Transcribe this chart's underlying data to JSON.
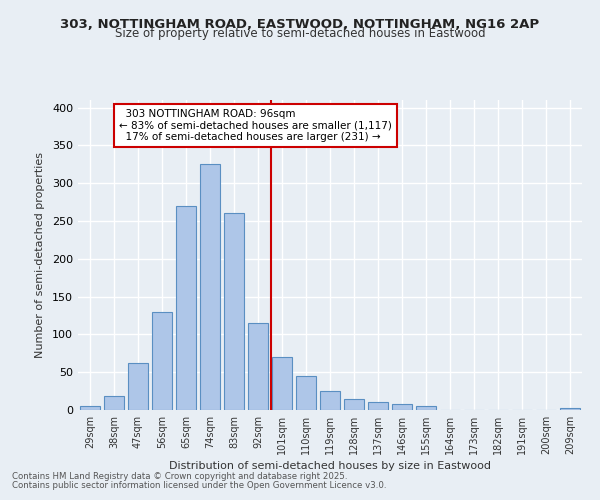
{
  "title1": "303, NOTTINGHAM ROAD, EASTWOOD, NOTTINGHAM, NG16 2AP",
  "title2": "Size of property relative to semi-detached houses in Eastwood",
  "xlabel": "Distribution of semi-detached houses by size in Eastwood",
  "ylabel": "Number of semi-detached properties",
  "categories": [
    "29sqm",
    "38sqm",
    "47sqm",
    "56sqm",
    "65sqm",
    "74sqm",
    "83sqm",
    "92sqm",
    "101sqm",
    "110sqm",
    "119sqm",
    "128sqm",
    "137sqm",
    "146sqm",
    "155sqm",
    "164sqm",
    "173sqm",
    "182sqm",
    "191sqm",
    "200sqm",
    "209sqm"
  ],
  "values": [
    5,
    18,
    62,
    130,
    270,
    325,
    260,
    115,
    70,
    45,
    25,
    15,
    10,
    8,
    5,
    0,
    0,
    0,
    0,
    0,
    2
  ],
  "bar_color": "#aec6e8",
  "bar_edge_color": "#5a8fc2",
  "property_label": "303 NOTTINGHAM ROAD: 96sqm",
  "pct_smaller": 83,
  "n_smaller": 1117,
  "pct_larger": 17,
  "n_larger": 231,
  "vline_x_index": 7.55,
  "ylim": [
    0,
    410
  ],
  "yticks": [
    0,
    50,
    100,
    150,
    200,
    250,
    300,
    350,
    400
  ],
  "footnote1": "Contains HM Land Registry data © Crown copyright and database right 2025.",
  "footnote2": "Contains public sector information licensed under the Open Government Licence v3.0.",
  "bg_color": "#e8eef4",
  "grid_color": "#ffffff",
  "annotation_box_color": "#ffffff",
  "annotation_border_color": "#cc0000"
}
